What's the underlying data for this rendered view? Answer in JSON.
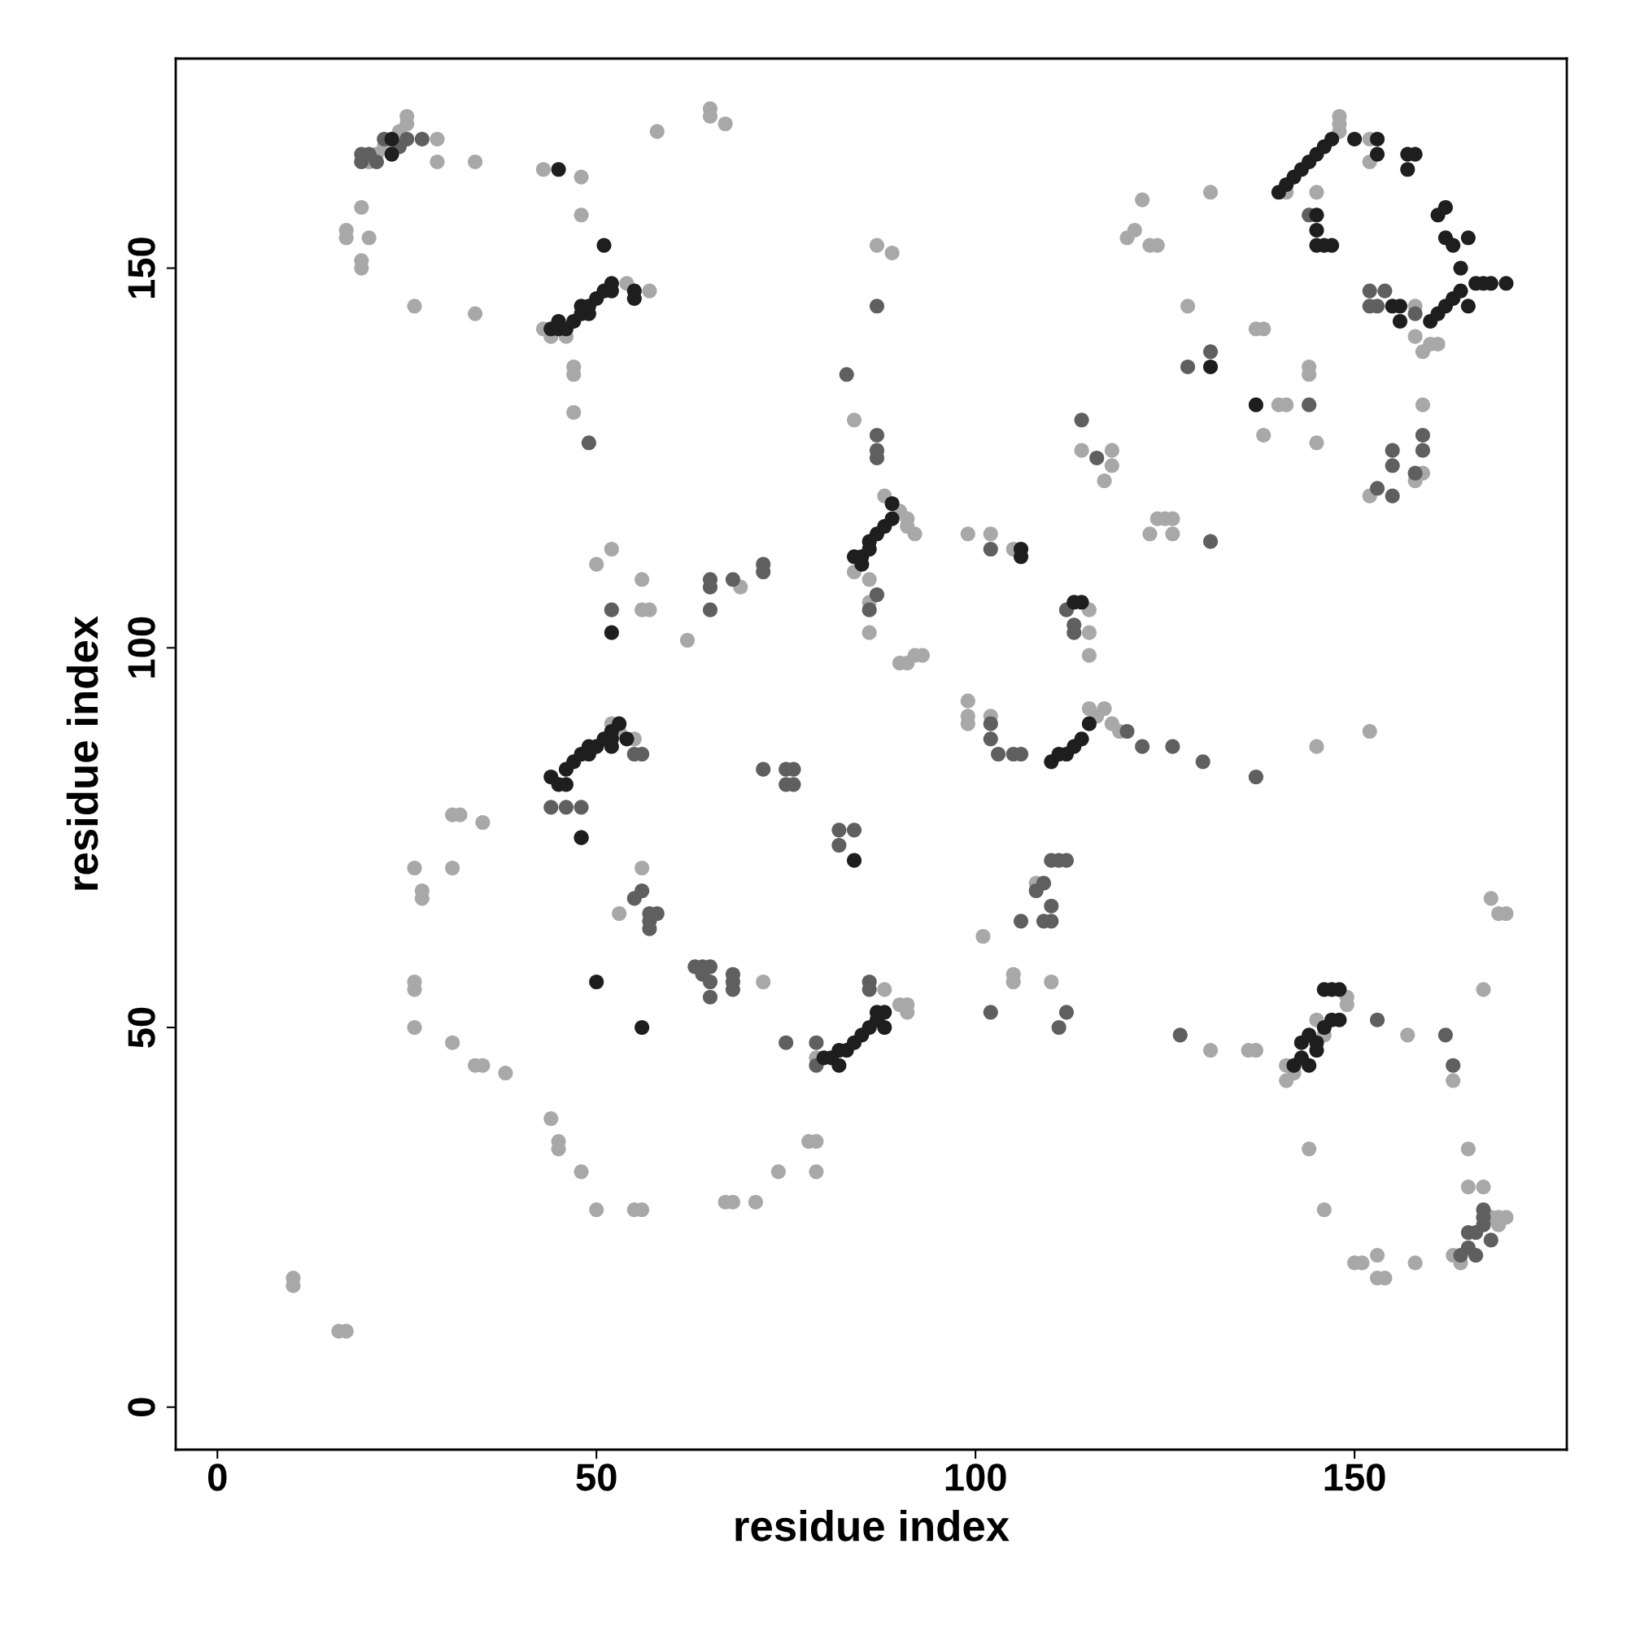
{
  "chart_data": {
    "type": "scatter",
    "xlabel": "residue index",
    "ylabel": "residue index",
    "xlim": [
      -5.5,
      178
    ],
    "ylim": [
      -5.6,
      177.6
    ],
    "xticks": [
      0,
      50,
      100,
      150
    ],
    "yticks": [
      0,
      50,
      100,
      150
    ],
    "marker": "circle",
    "grid": false,
    "legend": false,
    "series": [
      {
        "color": "#a8a8a8",
        "x": [
          17,
          17,
          19,
          19,
          19,
          20,
          20,
          21,
          22,
          24,
          25,
          25,
          26,
          29,
          29,
          34,
          34,
          43,
          48,
          48,
          43,
          44,
          46,
          47,
          47,
          47,
          54,
          57,
          58,
          65,
          65,
          67,
          84,
          87,
          89,
          90,
          91,
          91,
          92,
          88,
          84,
          86,
          86,
          86,
          90,
          91,
          92,
          93,
          50,
          52,
          56,
          56,
          57,
          62,
          69,
          99,
          102,
          105,
          115,
          115,
          115,
          114,
          117,
          118,
          118,
          123,
          124,
          125,
          126,
          126,
          120,
          121,
          122,
          123,
          124,
          131,
          128,
          137,
          138,
          138,
          140,
          141,
          144,
          144,
          145,
          148,
          148,
          148,
          141,
          145,
          152,
          152,
          158,
          158,
          159,
          160,
          161,
          159,
          152,
          155,
          158,
          159,
          52,
          53,
          55,
          99,
          99,
          99,
          102,
          115,
          116,
          117,
          118,
          119,
          108,
          110,
          105,
          105,
          101,
          26,
          27,
          27,
          31,
          31,
          32,
          35,
          26,
          26,
          26,
          31,
          34,
          35,
          38,
          10,
          10,
          16,
          17,
          44,
          45,
          45,
          48,
          50,
          55,
          56,
          53,
          56,
          65,
          72,
          67,
          68,
          71,
          74,
          78,
          79,
          79,
          88,
          90,
          91,
          91,
          79,
          131,
          136,
          137,
          141,
          141,
          142,
          149,
          149,
          146,
          145,
          157,
          163,
          144,
          146,
          150,
          151,
          153,
          154,
          153,
          158,
          165,
          165,
          167,
          163,
          164,
          168,
          169,
          170,
          169,
          167,
          168,
          169,
          170,
          145,
          152
        ],
        "values": [
          154,
          155,
          151,
          150,
          158,
          154,
          164,
          165,
          166,
          168,
          169,
          170,
          145,
          167,
          164,
          164,
          144,
          163,
          162,
          157,
          142,
          141,
          141,
          137,
          136,
          131,
          148,
          147,
          168,
          171,
          170,
          169,
          130,
          153,
          152,
          118,
          116,
          117,
          115,
          120,
          110,
          109,
          106,
          102,
          98,
          98,
          99,
          99,
          111,
          113,
          109,
          105,
          105,
          101,
          108,
          115,
          115,
          113,
          105,
          102,
          99,
          126,
          122,
          124,
          126,
          115,
          117,
          117,
          117,
          115,
          154,
          155,
          159,
          153,
          153,
          160,
          145,
          142,
          142,
          128,
          132,
          132,
          137,
          136,
          127,
          170,
          169,
          168,
          160,
          160,
          167,
          164,
          141,
          145,
          139,
          140,
          140,
          132,
          120,
          null,
          122,
          123,
          90,
          89,
          88,
          90,
          91,
          93,
          91,
          92,
          91,
          92,
          90,
          89,
          69,
          56,
          57,
          56,
          62,
          71,
          67,
          68,
          78,
          71,
          78,
          77,
          56,
          55,
          50,
          48,
          45,
          45,
          44,
          17,
          16,
          10,
          10,
          38,
          35,
          34,
          31,
          26,
          26,
          26,
          65,
          71,
          null,
          56,
          27,
          27,
          27,
          31,
          35,
          35,
          31,
          55,
          53,
          52,
          53,
          46,
          47,
          47,
          47,
          45,
          43,
          44,
          53,
          54,
          49,
          51,
          49,
          43,
          34,
          26,
          19,
          19,
          17,
          17,
          20,
          19,
          34,
          29,
          29,
          20,
          19,
          25,
          25,
          25,
          24,
          55,
          67,
          65,
          65,
          87,
          89
        ]
      },
      {
        "color": "#5f5f5f",
        "x": [
          19,
          19,
          20,
          21,
          22,
          24,
          25,
          27,
          49,
          83,
          87,
          87,
          87,
          87,
          87,
          86,
          65,
          65,
          65,
          68,
          72,
          72,
          52,
          102,
          112,
          113,
          113,
          114,
          116,
          131,
          128,
          131,
          144,
          144,
          152,
          152,
          153,
          154,
          158,
          153,
          155,
          155,
          155,
          158,
          159,
          159,
          44,
          46,
          48,
          48,
          56,
          55,
          72,
          75,
          76,
          75,
          76,
          82,
          84,
          82,
          102,
          102,
          103,
          105,
          106,
          120,
          122,
          126,
          130,
          137,
          110,
          111,
          112,
          108,
          109,
          110,
          110,
          109,
          106,
          102,
          111,
          112,
          75,
          79,
          79,
          86,
          86,
          127,
          162,
          163,
          165,
          166,
          167,
          167,
          167,
          168,
          166,
          165,
          164,
          153,
          63,
          64,
          64,
          65,
          65,
          65,
          68,
          68,
          68,
          55,
          56,
          57,
          57,
          57,
          58
        ],
        "values": [
          165,
          164,
          165,
          164,
          167,
          166,
          167,
          167,
          127,
          136,
          125,
          126,
          128,
          145,
          107,
          105,
          109,
          108,
          105,
          109,
          110,
          111,
          105,
          113,
          105,
          102,
          103,
          130,
          125,
          114,
          137,
          139,
          132,
          157,
          147,
          145,
          145,
          147,
          144,
          121,
          120,
          124,
          126,
          123,
          126,
          128,
          79,
          79,
          79,
          75,
          86,
          86,
          84,
          84,
          84,
          82,
          82,
          76,
          76,
          74,
          88,
          90,
          86,
          86,
          86,
          89,
          87,
          87,
          85,
          83,
          72,
          72,
          72,
          68,
          69,
          66,
          64,
          64,
          64,
          52,
          50,
          52,
          48,
          48,
          45,
          56,
          55,
          49,
          49,
          45,
          23,
          23,
          25,
          26,
          24,
          22,
          20,
          21,
          20,
          51,
          58,
          58,
          57,
          58,
          56,
          54,
          57,
          56,
          55,
          67,
          68,
          65,
          64,
          63,
          65
        ]
      },
      {
        "color": "#1e1e1e",
        "x": [
          23,
          23,
          45,
          44,
          45,
          45,
          46,
          47,
          48,
          48,
          49,
          49,
          50,
          51,
          52,
          52,
          55,
          55,
          51,
          52,
          84,
          85,
          85,
          86,
          86,
          87,
          88,
          89,
          89,
          106,
          106,
          113,
          114,
          131,
          137,
          140,
          141,
          142,
          143,
          144,
          145,
          146,
          147,
          150,
          145,
          145,
          145,
          146,
          147,
          153,
          153,
          157,
          158,
          157,
          161,
          162,
          162,
          163,
          165,
          164,
          155,
          156,
          156,
          160,
          161,
          162,
          163,
          164,
          165,
          166,
          167,
          168,
          170,
          44,
          45,
          46,
          46,
          47,
          48,
          49,
          49,
          50,
          51,
          52,
          52,
          52,
          53,
          54,
          48,
          84,
          110,
          111,
          112,
          113,
          114,
          115,
          56,
          50,
          80,
          81,
          82,
          82,
          83,
          84,
          85,
          86,
          87,
          87,
          88,
          88,
          142,
          143,
          143,
          144,
          144,
          145,
          145,
          146,
          147,
          147,
          148,
          148,
          146
        ],
        "values": [
          167,
          165,
          163,
          142,
          143,
          142,
          142,
          143,
          144,
          145,
          144,
          145,
          146,
          147,
          147,
          148,
          147,
          146,
          153,
          102,
          112,
          112,
          111,
          113,
          114,
          115,
          116,
          117,
          119,
          113,
          112,
          106,
          106,
          137,
          132,
          160,
          161,
          162,
          163,
          164,
          165,
          166,
          167,
          167,
          155,
          153,
          157,
          153,
          153,
          165,
          167,
          165,
          165,
          163,
          157,
          158,
          154,
          153,
          154,
          150,
          145,
          145,
          143,
          143,
          144,
          145,
          146,
          147,
          145,
          148,
          148,
          148,
          148,
          83,
          82,
          82,
          84,
          85,
          86,
          86,
          87,
          87,
          88,
          88,
          87,
          89,
          90,
          88,
          75,
          72,
          85,
          86,
          86,
          87,
          88,
          90,
          50,
          56,
          46,
          46,
          45,
          47,
          47,
          48,
          49,
          50,
          51,
          52,
          52,
          50,
          45,
          46,
          48,
          45,
          49,
          47,
          48,
          50,
          51,
          55,
          51,
          55,
          55
        ]
      }
    ]
  }
}
